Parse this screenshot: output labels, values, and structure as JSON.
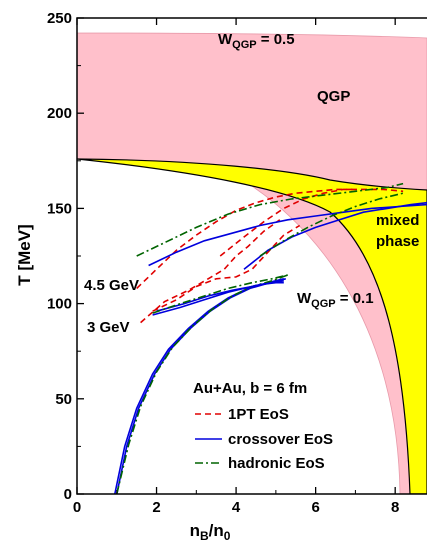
{
  "chart_data": {
    "type": "line",
    "title": "",
    "xlabel": "n",
    "xlabel_sub": "B",
    "xlabel_tail": "/n",
    "xlabel_sub2": "0",
    "ylabel": "T [MeV]",
    "xlim": [
      0,
      8.8
    ],
    "ylim": [
      0,
      250
    ],
    "x_ticks": [
      0,
      2,
      4,
      6,
      8
    ],
    "y_ticks": [
      0,
      50,
      100,
      150,
      200,
      250
    ],
    "x_tick_labels": [
      "0",
      "2",
      "4",
      "6",
      "8"
    ],
    "y_tick_labels": [
      "0",
      "50",
      "100",
      "150",
      "200",
      "250"
    ],
    "regions": [
      {
        "label": "QGP",
        "color": "#ffc0cb"
      },
      {
        "label": "mixed phase",
        "color": "#ffff00"
      }
    ],
    "annotations": {
      "wqgp_top": {
        "main": "W",
        "sub": "QGP",
        "rest": " = 0.5"
      },
      "wqgp_bottom": {
        "main": "W",
        "sub": "QGP",
        "rest": " = 0.1"
      },
      "qgp": "QGP",
      "mixed_line1": "mixed",
      "mixed_line2": "phase",
      "energy_high": "4.5 GeV",
      "energy_low": "3 GeV"
    },
    "legend": {
      "title": "Au+Au, b = 6 fm",
      "entries": [
        {
          "label": "1PT EoS",
          "color": "#e00000",
          "dash": "6,4"
        },
        {
          "label": "crossover EoS",
          "color": "#0000dd",
          "dash": ""
        },
        {
          "label": "hadronic EoS",
          "color": "#006400",
          "dash": "8,3,2,3"
        }
      ]
    },
    "series": [
      {
        "eos": "crossover",
        "x": [
          0.95,
          1.2,
          1.5,
          1.9,
          2.3,
          2.8,
          3.3,
          3.8,
          4.3,
          4.8,
          5.2
        ],
        "y": [
          0,
          25,
          45,
          63,
          76,
          87,
          96,
          103,
          108,
          111,
          113
        ]
      },
      {
        "eos": "crossover",
        "x": [
          1.0,
          1.25,
          1.55,
          1.95,
          2.35,
          2.85,
          3.35,
          3.85,
          4.35,
          4.85,
          5.25
        ],
        "y": [
          0,
          25,
          45,
          63,
          76,
          87,
          96,
          103,
          108,
          111,
          113
        ]
      },
      {
        "eos": "hadronic",
        "x": [
          1.0,
          1.3,
          1.6,
          2.0,
          2.4,
          2.9,
          3.4,
          3.9,
          4.4,
          4.9,
          5.3
        ],
        "y": [
          0,
          26,
          46,
          64,
          77,
          88,
          97,
          104,
          109,
          112,
          115
        ]
      },
      {
        "eos": "1PT",
        "x": [
          1.6,
          2.2,
          2.8,
          3.3,
          3.7,
          4.0,
          4.3,
          4.7,
          5.1
        ],
        "y": [
          90,
          101,
          107,
          113,
          118,
          125,
          130,
          138,
          144
        ]
      },
      {
        "eos": "1PT",
        "x": [
          1.9,
          2.5,
          3.0,
          3.5,
          4.0,
          4.4,
          4.8,
          5.2,
          5.6
        ],
        "y": [
          96,
          102,
          109,
          113,
          114,
          118,
          127,
          136,
          141
        ]
      },
      {
        "eos": "crossover",
        "x": [
          1.9,
          2.6,
          3.2,
          3.8,
          4.2,
          4.6,
          5.0,
          5.2
        ],
        "y": [
          94,
          98,
          102,
          106,
          108,
          110,
          111,
          111
        ]
      },
      {
        "eos": "crossover",
        "x": [
          2.0,
          2.7,
          3.3,
          3.9,
          4.4,
          4.9,
          5.2
        ],
        "y": [
          96,
          100,
          104,
          107,
          109,
          111,
          112
        ]
      },
      {
        "eos": "hadronic",
        "x": [
          1.9,
          2.6,
          3.2,
          3.8,
          4.4,
          4.9,
          5.3
        ],
        "y": [
          95,
          100,
          104,
          108,
          111,
          113,
          115
        ]
      },
      {
        "eos": "1PT",
        "x": [
          1.5,
          2.0,
          2.5,
          3.0,
          3.5,
          4.0,
          4.5,
          5.0,
          5.5,
          6.0,
          6.5,
          7.0
        ],
        "y": [
          108,
          118,
          128,
          136,
          143,
          149,
          153,
          156,
          158,
          159,
          160,
          160
        ]
      },
      {
        "eos": "1PT",
        "x": [
          3.6,
          4.2,
          4.7,
          5.2,
          5.7,
          6.2,
          6.7,
          7.2,
          7.7,
          8.2
        ],
        "y": [
          125,
          135,
          143,
          150,
          155,
          158,
          160,
          160,
          160,
          159
        ]
      },
      {
        "eos": "crossover",
        "x": [
          1.8,
          2.5,
          3.2,
          3.9,
          4.6,
          5.3,
          6.0,
          6.7,
          7.4,
          8.1,
          8.8
        ],
        "y": [
          120,
          127,
          133,
          137,
          141,
          144,
          146,
          148,
          150,
          151,
          152
        ]
      },
      {
        "eos": "crossover",
        "x": [
          4.2,
          4.8,
          5.4,
          6.0,
          6.6,
          7.2,
          7.8,
          8.4,
          8.8
        ],
        "y": [
          118,
          128,
          135,
          140,
          144,
          148,
          150,
          152,
          153
        ]
      },
      {
        "eos": "hadronic",
        "x": [
          1.5,
          2.2,
          3.0,
          3.8,
          4.6,
          5.4,
          6.2,
          7.0,
          7.8,
          8.2
        ],
        "y": [
          125,
          132,
          140,
          147,
          152,
          155,
          157,
          159,
          161,
          163
        ]
      },
      {
        "eos": "hadronic",
        "x": [
          4.6,
          5.2,
          5.8,
          6.4,
          7.0,
          7.6,
          8.2
        ],
        "y": [
          125,
          133,
          140,
          146,
          151,
          155,
          158
        ]
      }
    ]
  }
}
